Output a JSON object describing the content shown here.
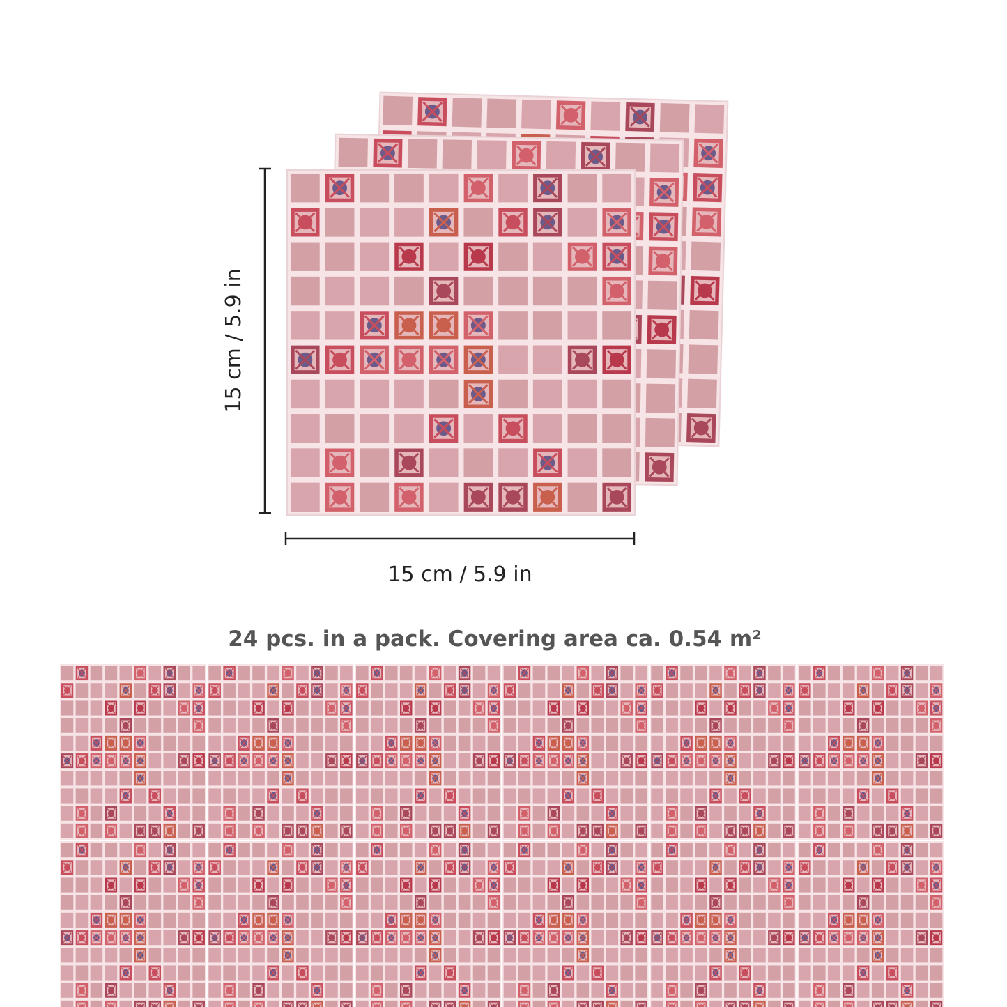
{
  "dimensions": {
    "height_label": "15 cm / 5.9 in",
    "width_label": "15 cm / 5.9 in"
  },
  "caption": "24 pcs. in a pack. Covering area ca. 0.54 m²"
}
